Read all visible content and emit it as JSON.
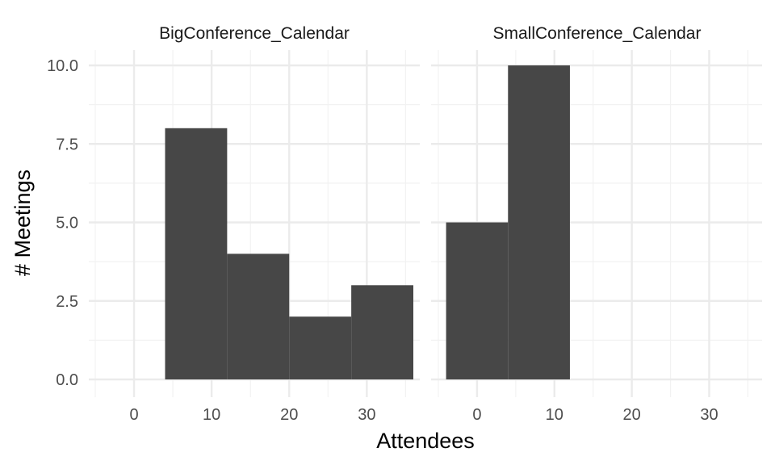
{
  "chart_data": {
    "type": "bar",
    "subtype": "faceted-histogram",
    "xlabel": "Attendees",
    "ylabel": "# Meetings",
    "xlim": [
      -5,
      36
    ],
    "ylim": [
      0,
      10
    ],
    "x_ticks": [
      0,
      10,
      20,
      30
    ],
    "x_tick_labels": [
      "0",
      "10",
      "20",
      "30"
    ],
    "y_ticks": [
      0,
      2.5,
      5,
      7.5,
      10
    ],
    "y_tick_labels": [
      "0.0",
      "2.5",
      "5.0",
      "7.5",
      "10.0"
    ],
    "grid": true,
    "bar_color": "#474747",
    "panels": [
      {
        "title": "BigConference_Calendar",
        "bins": [
          {
            "x0": 4,
            "x1": 12,
            "count": 8
          },
          {
            "x0": 12,
            "x1": 20,
            "count": 4
          },
          {
            "x0": 20,
            "x1": 28,
            "count": 2
          },
          {
            "x0": 28,
            "x1": 36,
            "count": 3
          }
        ]
      },
      {
        "title": "SmallConference_Calendar",
        "bins": [
          {
            "x0": -4,
            "x1": 4,
            "count": 5
          },
          {
            "x0": 4,
            "x1": 12,
            "count": 10
          }
        ]
      }
    ]
  }
}
